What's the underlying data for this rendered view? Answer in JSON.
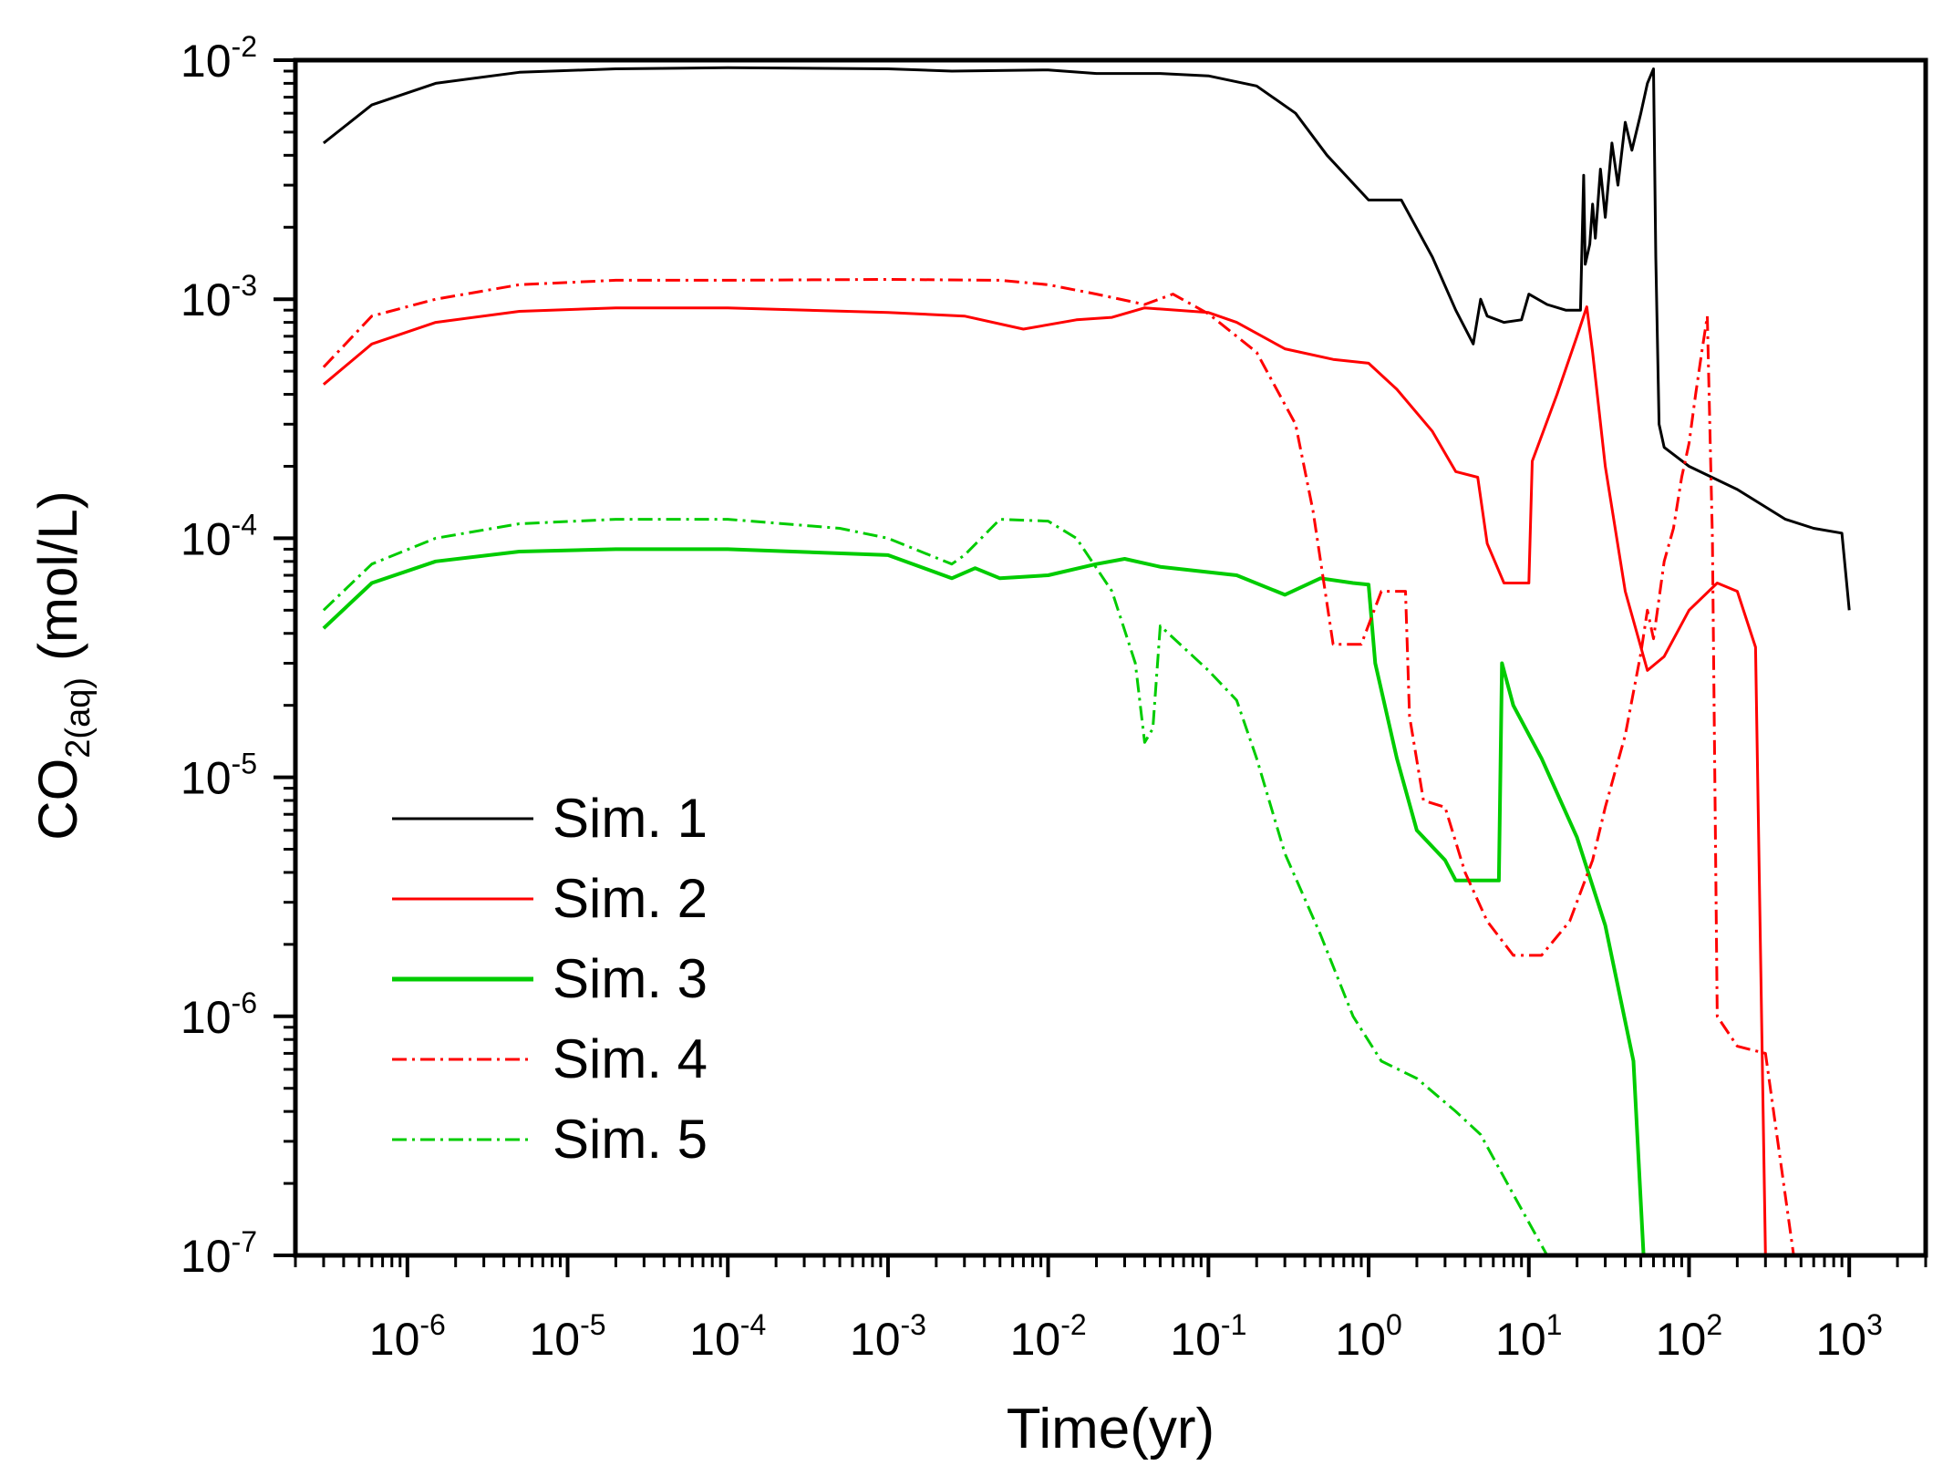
{
  "chart_data": {
    "type": "line",
    "title": "",
    "xlabel": "Time(yr)",
    "ylabel": {
      "main": "CO",
      "sub": "2(aq)",
      "unit": "(mol/L)"
    },
    "xscale": "log",
    "yscale": "log",
    "xlim": [
      2e-07,
      3000
    ],
    "ylim": [
      1e-07,
      0.01
    ],
    "x_ticks": [
      {
        "value": 1e-06,
        "base": "10",
        "exp": "-6"
      },
      {
        "value": 1e-05,
        "base": "10",
        "exp": "-5"
      },
      {
        "value": 0.0001,
        "base": "10",
        "exp": "-4"
      },
      {
        "value": 0.001,
        "base": "10",
        "exp": "-3"
      },
      {
        "value": 0.01,
        "base": "10",
        "exp": "-2"
      },
      {
        "value": 0.1,
        "base": "10",
        "exp": "-1"
      },
      {
        "value": 1,
        "base": "10",
        "exp": "0"
      },
      {
        "value": 10,
        "base": "10",
        "exp": "1"
      },
      {
        "value": 100,
        "base": "10",
        "exp": "2"
      },
      {
        "value": 1000,
        "base": "10",
        "exp": "3"
      }
    ],
    "y_ticks": [
      {
        "value": 1e-07,
        "base": "10",
        "exp": "-7"
      },
      {
        "value": 1e-06,
        "base": "10",
        "exp": "-6"
      },
      {
        "value": 1e-05,
        "base": "10",
        "exp": "-5"
      },
      {
        "value": 0.0001,
        "base": "10",
        "exp": "-4"
      },
      {
        "value": 0.001,
        "base": "10",
        "exp": "-3"
      },
      {
        "value": 0.01,
        "base": "10",
        "exp": "-2"
      }
    ],
    "legend_position": "lower-left",
    "series": [
      {
        "name": "Sim. 1",
        "color": "#000000",
        "style": "solid",
        "points": [
          [
            3e-07,
            0.0045
          ],
          [
            6e-07,
            0.0065
          ],
          [
            1.5e-06,
            0.008
          ],
          [
            5e-06,
            0.0089
          ],
          [
            2e-05,
            0.0092
          ],
          [
            0.0001,
            0.0093
          ],
          [
            0.001,
            0.0092
          ],
          [
            0.0025,
            0.009
          ],
          [
            0.01,
            0.0091
          ],
          [
            0.02,
            0.0088
          ],
          [
            0.05,
            0.0088
          ],
          [
            0.1,
            0.0086
          ],
          [
            0.2,
            0.0078
          ],
          [
            0.35,
            0.006
          ],
          [
            0.55,
            0.004
          ],
          [
            1,
            0.0026
          ],
          [
            1.6,
            0.0026
          ],
          [
            2.5,
            0.0015
          ],
          [
            3.5,
            0.0009
          ],
          [
            4.5,
            0.00065
          ],
          [
            5,
            0.001
          ],
          [
            5.5,
            0.00085
          ],
          [
            7,
            0.0008
          ],
          [
            9,
            0.00082
          ],
          [
            10,
            0.00105
          ],
          [
            13,
            0.00095
          ],
          [
            17,
            0.0009
          ],
          [
            21,
            0.0009
          ],
          [
            22,
            0.0033
          ],
          [
            22.5,
            0.0014
          ],
          [
            24,
            0.0017
          ],
          [
            25,
            0.0025
          ],
          [
            26,
            0.0018
          ],
          [
            28,
            0.0035
          ],
          [
            30,
            0.0022
          ],
          [
            33,
            0.0045
          ],
          [
            36,
            0.003
          ],
          [
            40,
            0.0055
          ],
          [
            44,
            0.0042
          ],
          [
            50,
            0.006
          ],
          [
            55,
            0.008
          ],
          [
            60,
            0.0092
          ],
          [
            62,
            0.0015
          ],
          [
            65,
            0.0003
          ],
          [
            70,
            0.00024
          ],
          [
            100,
            0.0002
          ],
          [
            200,
            0.00016
          ],
          [
            400,
            0.00012
          ],
          [
            600,
            0.00011
          ],
          [
            900,
            0.000105
          ],
          [
            1000,
            5e-05
          ]
        ]
      },
      {
        "name": "Sim. 2",
        "color": "#ff0000",
        "style": "solid",
        "points": [
          [
            3e-07,
            0.00044
          ],
          [
            6e-07,
            0.00065
          ],
          [
            1.5e-06,
            0.0008
          ],
          [
            5e-06,
            0.00089
          ],
          [
            2e-05,
            0.00092
          ],
          [
            0.0001,
            0.00092
          ],
          [
            0.001,
            0.00088
          ],
          [
            0.003,
            0.00085
          ],
          [
            0.007,
            0.00075
          ],
          [
            0.015,
            0.00082
          ],
          [
            0.025,
            0.00084
          ],
          [
            0.04,
            0.00092
          ],
          [
            0.1,
            0.00088
          ],
          [
            0.15,
            0.0008
          ],
          [
            0.3,
            0.00062
          ],
          [
            0.6,
            0.00056
          ],
          [
            1,
            0.00054
          ],
          [
            1.5,
            0.00042
          ],
          [
            2.5,
            0.00028
          ],
          [
            3.5,
            0.00019
          ],
          [
            4.8,
            0.00018
          ],
          [
            5.5,
            9.5e-05
          ],
          [
            7,
            6.5e-05
          ],
          [
            10,
            6.5e-05
          ],
          [
            10.5,
            0.00021
          ],
          [
            15,
            0.0004
          ],
          [
            20,
            0.0007
          ],
          [
            23,
            0.00093
          ],
          [
            25,
            0.0006
          ],
          [
            30,
            0.0002
          ],
          [
            40,
            6e-05
          ],
          [
            55,
            2.8e-05
          ],
          [
            70,
            3.2e-05
          ],
          [
            100,
            5e-05
          ],
          [
            150,
            6.5e-05
          ],
          [
            200,
            6e-05
          ],
          [
            260,
            3.5e-05
          ],
          [
            300,
            1e-07
          ]
        ]
      },
      {
        "name": "Sim. 3",
        "color": "#00cc00",
        "style": "solid",
        "points": [
          [
            3e-07,
            4.2e-05
          ],
          [
            6e-07,
            6.5e-05
          ],
          [
            1.5e-06,
            8e-05
          ],
          [
            5e-06,
            8.8e-05
          ],
          [
            2e-05,
            9e-05
          ],
          [
            0.0001,
            9e-05
          ],
          [
            0.001,
            8.5e-05
          ],
          [
            0.0025,
            6.8e-05
          ],
          [
            0.0035,
            7.5e-05
          ],
          [
            0.005,
            6.8e-05
          ],
          [
            0.01,
            7e-05
          ],
          [
            0.02,
            7.8e-05
          ],
          [
            0.03,
            8.2e-05
          ],
          [
            0.05,
            7.6e-05
          ],
          [
            0.15,
            7e-05
          ],
          [
            0.3,
            5.8e-05
          ],
          [
            0.5,
            6.8e-05
          ],
          [
            0.8,
            6.5e-05
          ],
          [
            1,
            6.4e-05
          ],
          [
            1.1,
            3e-05
          ],
          [
            1.5,
            1.2e-05
          ],
          [
            2,
            6e-06
          ],
          [
            3,
            4.5e-06
          ],
          [
            3.5,
            3.7e-06
          ],
          [
            6.5,
            3.7e-06
          ],
          [
            6.8,
            3e-05
          ],
          [
            8,
            2e-05
          ],
          [
            12,
            1.2e-05
          ],
          [
            20,
            5.6e-06
          ],
          [
            30,
            2.4e-06
          ],
          [
            45,
            6.5e-07
          ],
          [
            52,
            1e-07
          ]
        ]
      },
      {
        "name": "Sim. 4",
        "color": "#ff0000",
        "style": "dashdot",
        "points": [
          [
            3e-07,
            0.00052
          ],
          [
            6e-07,
            0.00085
          ],
          [
            1.5e-06,
            0.001
          ],
          [
            5e-06,
            0.00115
          ],
          [
            2e-05,
            0.0012
          ],
          [
            0.0001,
            0.0012
          ],
          [
            0.001,
            0.00121
          ],
          [
            0.005,
            0.0012
          ],
          [
            0.01,
            0.00115
          ],
          [
            0.02,
            0.00105
          ],
          [
            0.04,
            0.00095
          ],
          [
            0.06,
            0.00105
          ],
          [
            0.1,
            0.00087
          ],
          [
            0.2,
            0.0006
          ],
          [
            0.35,
            0.0003
          ],
          [
            0.45,
            0.00013
          ],
          [
            0.6,
            3.6e-05
          ],
          [
            0.9,
            3.6e-05
          ],
          [
            1.2,
            6e-05
          ],
          [
            1.7,
            6e-05
          ],
          [
            1.8,
            1.8e-05
          ],
          [
            2.2,
            8e-06
          ],
          [
            3,
            7.5e-06
          ],
          [
            4,
            4e-06
          ],
          [
            5.5,
            2.5e-06
          ],
          [
            8,
            1.8e-06
          ],
          [
            12,
            1.8e-06
          ],
          [
            18,
            2.5e-06
          ],
          [
            25,
            4.5e-06
          ],
          [
            30,
            7.5e-06
          ],
          [
            40,
            1.5e-05
          ],
          [
            50,
            3.3e-05
          ],
          [
            55,
            5e-05
          ],
          [
            60,
            3.8e-05
          ],
          [
            70,
            8e-05
          ],
          [
            80,
            0.00011
          ],
          [
            90,
            0.00018
          ],
          [
            100,
            0.00025
          ],
          [
            110,
            0.0004
          ],
          [
            120,
            0.0006
          ],
          [
            130,
            0.00085
          ],
          [
            140,
            0.0001
          ],
          [
            150,
            1e-06
          ],
          [
            200,
            7.5e-07
          ],
          [
            300,
            7e-07
          ],
          [
            450,
            1e-07
          ]
        ]
      },
      {
        "name": "Sim. 5",
        "color": "#00cc00",
        "style": "dashdot",
        "points": [
          [
            3e-07,
            5e-05
          ],
          [
            6e-07,
            7.8e-05
          ],
          [
            1.5e-06,
            0.0001
          ],
          [
            5e-06,
            0.000115
          ],
          [
            2e-05,
            0.00012
          ],
          [
            0.0001,
            0.00012
          ],
          [
            0.0005,
            0.00011
          ],
          [
            0.001,
            0.0001
          ],
          [
            0.0025,
            7.8e-05
          ],
          [
            0.003,
            8.5e-05
          ],
          [
            0.005,
            0.00012
          ],
          [
            0.01,
            0.000118
          ],
          [
            0.015,
            0.0001
          ],
          [
            0.025,
            6e-05
          ],
          [
            0.035,
            3e-05
          ],
          [
            0.04,
            1.4e-05
          ],
          [
            0.045,
            1.6e-05
          ],
          [
            0.05,
            4.3e-05
          ],
          [
            0.1,
            2.8e-05
          ],
          [
            0.15,
            2.1e-05
          ],
          [
            0.2,
            1.2e-05
          ],
          [
            0.3,
            4.8e-06
          ],
          [
            0.5,
            2.2e-06
          ],
          [
            0.8,
            1e-06
          ],
          [
            1.2,
            6.5e-07
          ],
          [
            2,
            5.5e-07
          ],
          [
            3.5,
            4e-07
          ],
          [
            5,
            3.2e-07
          ],
          [
            8,
            1.8e-07
          ],
          [
            13,
            1e-07
          ]
        ]
      }
    ]
  }
}
